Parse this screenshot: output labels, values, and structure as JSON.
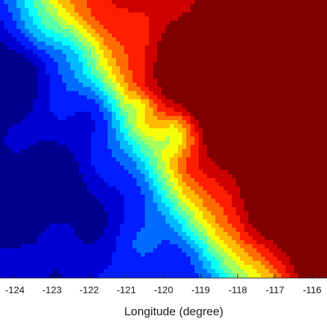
{
  "chart_data": {
    "type": "heatmap",
    "title": "",
    "xlabel": "Longitude (degree)",
    "ylabel": "",
    "xlim": [
      -124.4,
      -115.6
    ],
    "xticks": [
      -124,
      -123,
      -122,
      -121,
      -120,
      -119,
      -118,
      -117,
      -116
    ],
    "xtick_labels": [
      "-124",
      "-123",
      "-122",
      "-121",
      "-120",
      "-119",
      "-118",
      "-117",
      "-116"
    ],
    "colormap": "jet",
    "colormap_stops": [
      "#00008f",
      "#0000ff",
      "#0080ff",
      "#00ffff",
      "#80ff80",
      "#ffff00",
      "#ff8000",
      "#ff0000",
      "#800000"
    ],
    "color_levels": 14,
    "field_description_values": {
      "southwest_region": "low",
      "northeast_region": "high"
    },
    "colorbar": false,
    "legend": "none",
    "grid": false
  }
}
